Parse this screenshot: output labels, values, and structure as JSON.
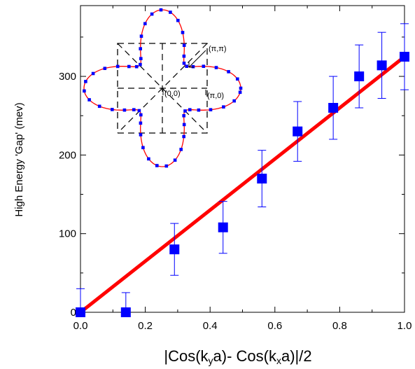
{
  "chart_data": {
    "type": "scatter",
    "xlabel": "|Cos(k_ya)- Cos(k_xa)|/2",
    "xlabel_parts": [
      "|Cos(k",
      "y",
      "a)- Cos(k",
      "x",
      "a)|/2"
    ],
    "ylabel": "High Energy 'Gap' (mev)",
    "xlim": [
      0.0,
      1.0
    ],
    "ylim": [
      0,
      390
    ],
    "xticks": [
      "0.0",
      "0.2",
      "0.4",
      "0.6",
      "0.8",
      "1.0"
    ],
    "yticks": [
      "0",
      "100",
      "200",
      "300"
    ],
    "series": [
      {
        "x": [
          0.0,
          0.14,
          0.29,
          0.44,
          0.56,
          0.67,
          0.78,
          0.86,
          0.93,
          1.0
        ],
        "y": [
          0,
          0,
          80,
          108,
          170,
          230,
          260,
          300,
          314,
          325
        ],
        "yerr": [
          30,
          25,
          33,
          33,
          36,
          38,
          40,
          40,
          42,
          42
        ],
        "color": "#0000ff"
      }
    ],
    "fit_line": {
      "x": [
        0.0,
        1.0
      ],
      "y": [
        0,
        325
      ],
      "color": "#ff0000"
    },
    "inset": {
      "labels": {
        "pi_pi": "(π,π)",
        "pi_0": "(π,0)",
        "origin": "(0,0)"
      },
      "curve_color": "#ff0000",
      "marker_color": "#0000ff"
    },
    "grid": false,
    "legend": "none"
  }
}
